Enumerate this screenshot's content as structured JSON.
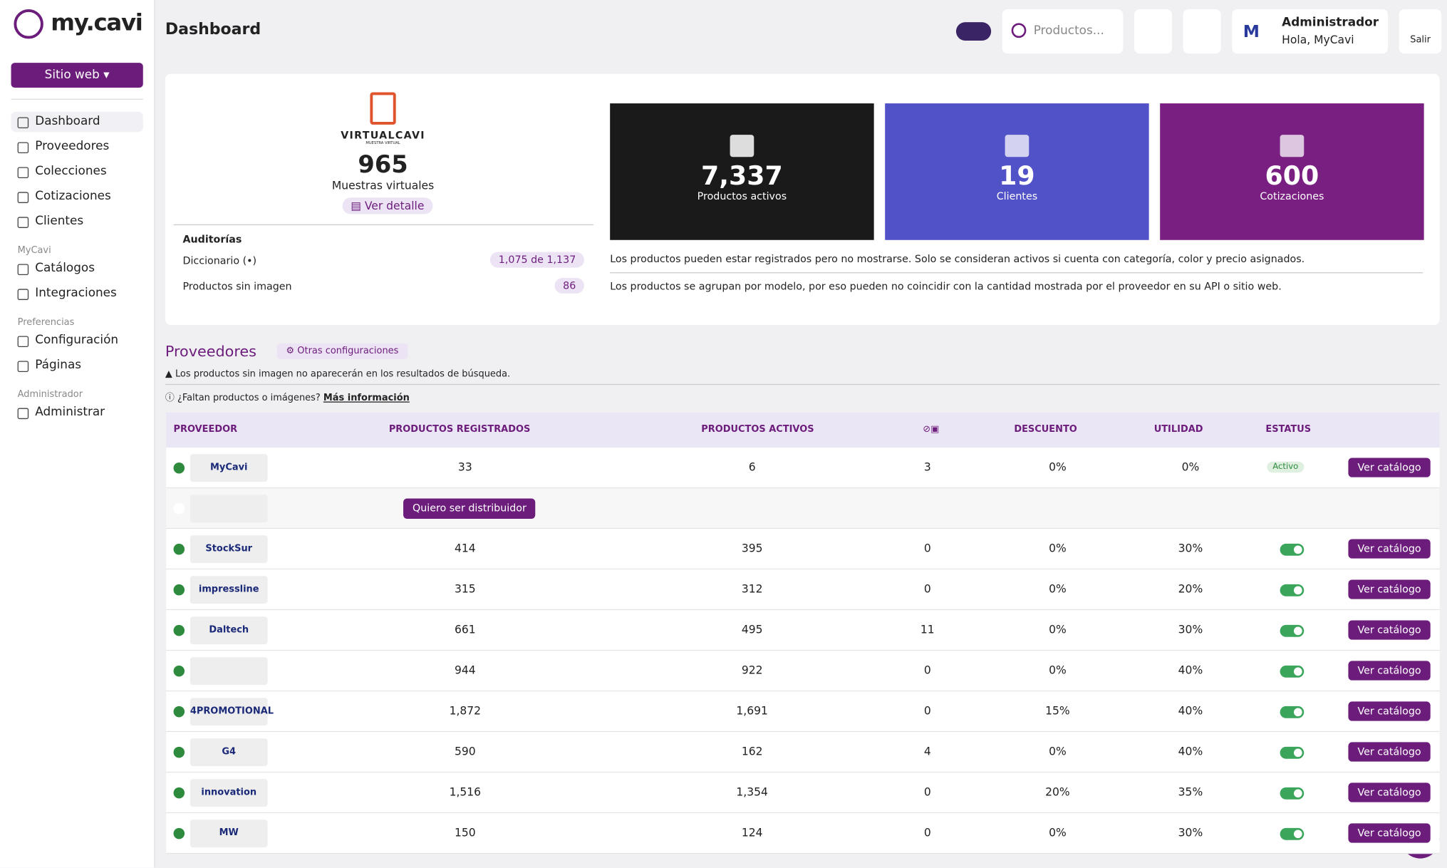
{
  "sidebar": {
    "brand": "my.cavi",
    "site_button": "Sitio web",
    "groups": [
      {
        "items": [
          "Dashboard",
          "Proveedores",
          "Colecciones",
          "Cotizaciones",
          "Clientes"
        ]
      },
      {
        "heading": "MyCavi",
        "items": [
          "Catálogos",
          "Integraciones"
        ]
      },
      {
        "heading": "Preferencias",
        "items": [
          "Configuración",
          "Páginas"
        ]
      },
      {
        "heading": "Administrador",
        "items": [
          "Administrar"
        ]
      }
    ]
  },
  "header": {
    "title": "Dashboard",
    "search_placeholder": "Productos...",
    "user_name": "Administrador",
    "user_greeting": "Hola, MyCavi",
    "logout": "Salir"
  },
  "summary": {
    "brand": "VIRTUALCAVI",
    "brand_sub": "MUESTRA VIRTUAL",
    "count": "965",
    "count_label": "Muestras virtuales",
    "detail_button": "Ver detalle",
    "audits_title": "Auditorías",
    "audits": [
      {
        "label": "Diccionario (•)",
        "value": "1,075 de 1,137"
      },
      {
        "label": "Productos sin imagen",
        "value": "86"
      }
    ]
  },
  "stats": [
    {
      "value": "7,337",
      "label": "Productos activos",
      "color": "#1a1a1a"
    },
    {
      "value": "19",
      "label": "Clientes",
      "color": "#5152c8"
    },
    {
      "value": "600",
      "label": "Cotizaciones",
      "color": "#7a1f82"
    }
  ],
  "notes": [
    "Los productos pueden estar registrados pero no mostrarse. Solo se consideran activos si cuenta con categoría, color y precio asignados.",
    "Los productos se agrupan por modelo, por eso pueden no coincidir con la cantidad mostrada por el proveedor en su API o sitio web."
  ],
  "providers": {
    "title": "Proveedores",
    "config_button": "Otras configuraciones",
    "warning": "Los productos sin imagen no aparecerán en los resultados de búsqueda.",
    "help": "¿Faltan productos o imágenes?",
    "help_link": "Más información",
    "columns": [
      "PROVEEDOR",
      "PRODUCTOS REGISTRADOS",
      "PRODUCTOS ACTIVOS",
      "DESCUENTO",
      "UTILIDAD",
      "ESTATUS"
    ],
    "action": "Ver catálogo",
    "distributor_button": "Quiero ser distribuidor",
    "rows": [
      {
        "logo": "MyCavi",
        "registered": "33",
        "active": "6",
        "no_image": "3",
        "discount": "0%",
        "utility": "0%",
        "status": "Activo"
      },
      {
        "distributor": true
      },
      {
        "logo": "StockSur",
        "registered": "414",
        "active": "395",
        "no_image": "0",
        "discount": "0%",
        "utility": "30%"
      },
      {
        "logo": "impressline",
        "registered": "315",
        "active": "312",
        "no_image": "0",
        "discount": "0%",
        "utility": "20%"
      },
      {
        "logo": "Daltech",
        "registered": "661",
        "active": "495",
        "no_image": "11",
        "discount": "0%",
        "utility": "30%"
      },
      {
        "registered": "944",
        "active": "922",
        "no_image": "0",
        "discount": "0%",
        "utility": "40%"
      },
      {
        "logo": "4PROMOTIONAL",
        "registered": "1,872",
        "active": "1,691",
        "no_image": "0",
        "discount": "15%",
        "utility": "40%"
      },
      {
        "logo": "G4",
        "registered": "590",
        "active": "162",
        "no_image": "4",
        "discount": "0%",
        "utility": "40%"
      },
      {
        "logo": "innovation",
        "registered": "1,516",
        "active": "1,354",
        "no_image": "0",
        "discount": "20%",
        "utility": "35%"
      },
      {
        "logo": "MW",
        "registered": "150",
        "active": "124",
        "no_image": "0",
        "discount": "0%",
        "utility": "30%"
      }
    ]
  }
}
